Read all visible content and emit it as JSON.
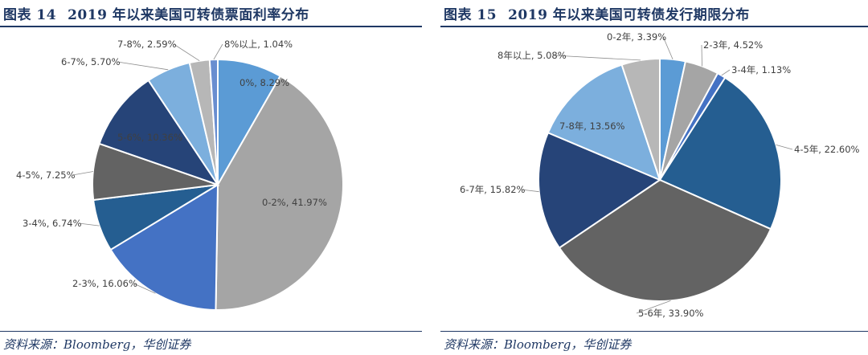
{
  "chart_data": [
    {
      "type": "pie",
      "figure_label": "图表 14",
      "title": "2019 年以来美国可转债票面利率分布",
      "source": "资料来源：Bloomberg，华创证券",
      "slices": [
        {
          "label": "0%",
          "value": 8.29,
          "color": "#5b9bd5"
        },
        {
          "label": "0-2%",
          "value": 41.97,
          "color": "#a5a5a5"
        },
        {
          "label": "2-3%",
          "value": 16.06,
          "color": "#4472c4"
        },
        {
          "label": "3-4%",
          "value": 6.74,
          "color": "#255e91"
        },
        {
          "label": "4-5%",
          "value": 7.25,
          "color": "#636363"
        },
        {
          "label": "5-6%",
          "value": 10.36,
          "color": "#264478"
        },
        {
          "label": "6-7%",
          "value": 5.7,
          "color": "#7cafdd"
        },
        {
          "label": "7-8%",
          "value": 2.59,
          "color": "#b7b7b7"
        },
        {
          "label": "8%以上",
          "value": 1.04,
          "color": "#698ed0"
        }
      ]
    },
    {
      "type": "pie",
      "figure_label": "图表 15",
      "title": "2019 年以来美国可转债发行期限分布",
      "source": "资料来源：Bloomberg，华创证券",
      "slices": [
        {
          "label": "0-2年",
          "value": 3.39,
          "color": "#5b9bd5"
        },
        {
          "label": "2-3年",
          "value": 4.52,
          "color": "#a5a5a5"
        },
        {
          "label": "3-4年",
          "value": 1.13,
          "color": "#4472c4"
        },
        {
          "label": "4-5年",
          "value": 22.6,
          "color": "#255e91"
        },
        {
          "label": "5-6年",
          "value": 33.9,
          "color": "#636363"
        },
        {
          "label": "6-7年",
          "value": 15.82,
          "color": "#264478"
        },
        {
          "label": "7-8年",
          "value": 13.56,
          "color": "#7cafdd"
        },
        {
          "label": "8年以上",
          "value": 5.08,
          "color": "#b7b7b7"
        }
      ]
    }
  ]
}
